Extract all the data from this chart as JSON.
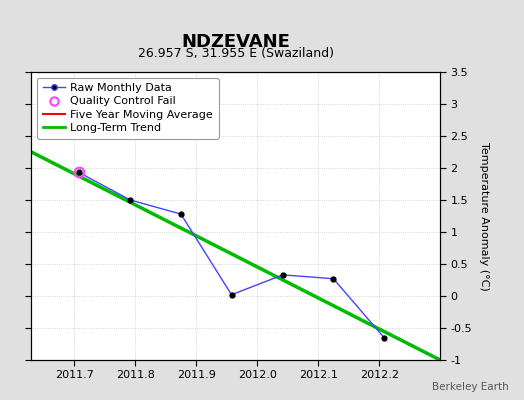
{
  "title": "NDZEVANE",
  "subtitle": "26.957 S, 31.955 E (Swaziland)",
  "ylabel": "Temperature Anomaly (°C)",
  "watermark": "Berkeley Earth",
  "xlim": [
    2011.63,
    2012.3
  ],
  "ylim": [
    -1.0,
    3.5
  ],
  "xticks": [
    2011.7,
    2011.8,
    2011.9,
    2012.0,
    2012.1,
    2012.2
  ],
  "yticks": [
    -1.0,
    -0.5,
    0.0,
    0.5,
    1.0,
    1.5,
    2.0,
    2.5,
    3.0,
    3.5
  ],
  "raw_x": [
    2011.708,
    2011.792,
    2011.875,
    2011.958,
    2012.042,
    2012.125,
    2012.208
  ],
  "raw_y": [
    1.93,
    1.5,
    1.28,
    0.02,
    0.33,
    0.27,
    -0.65
  ],
  "qc_fail_x": [
    2011.708
  ],
  "qc_fail_y": [
    1.93
  ],
  "trend_x": [
    2011.63,
    2012.3
  ],
  "trend_y": [
    2.25,
    -1.0
  ],
  "background_color": "#e0e0e0",
  "plot_bg_color": "#ffffff",
  "raw_line_color": "#4444ff",
  "raw_marker_color": "#000000",
  "qc_color": "#ff44ff",
  "trend_color": "#00bb00",
  "moving_avg_color": "#ff0000",
  "title_fontsize": 13,
  "subtitle_fontsize": 9,
  "label_fontsize": 8,
  "tick_fontsize": 8,
  "legend_fontsize": 8
}
